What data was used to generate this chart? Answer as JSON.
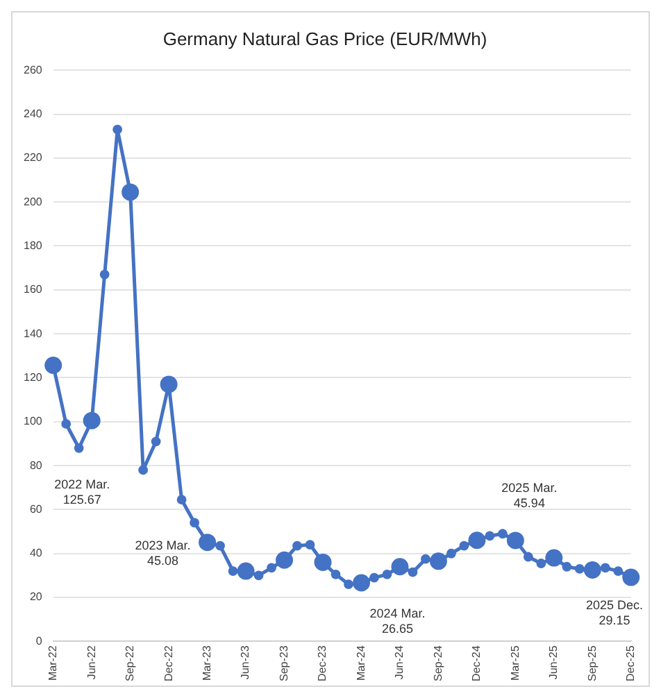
{
  "chart_data": {
    "type": "line",
    "title": "Germany Natural Gas Price (EUR/MWh)",
    "categories": [
      "Mar-22",
      null,
      null,
      "Jun-22",
      null,
      null,
      "Sep-22",
      null,
      null,
      "Dec-22",
      null,
      null,
      "Mar-23",
      null,
      null,
      "Jun-23",
      null,
      null,
      "Sep-23",
      null,
      null,
      "Dec-23",
      null,
      null,
      "Mar-24",
      null,
      null,
      "Jun-24",
      null,
      null,
      "Sep-24",
      null,
      null,
      "Dec-24",
      null,
      null,
      "Mar-25",
      null,
      null,
      "Jun-25",
      null,
      null,
      "Sep-25",
      null,
      null,
      "Dec-25"
    ],
    "series": [
      {
        "color": "#4472c4",
        "values": [
          125.67,
          99,
          88,
          100.5,
          167,
          233,
          204.5,
          78,
          91,
          117,
          64.5,
          54,
          45.08,
          43.5,
          32,
          32,
          30,
          33.5,
          37,
          43.5,
          44,
          36,
          30.5,
          26,
          26.65,
          29,
          30.5,
          34,
          31.5,
          37.5,
          36.5,
          40,
          43.5,
          46,
          48,
          49,
          45.94,
          38.5,
          35.5,
          38,
          34,
          33,
          32.5,
          33.5,
          32,
          29.15
        ]
      }
    ],
    "ylim": [
      0,
      260
    ],
    "yticks": [
      0,
      20,
      40,
      60,
      80,
      100,
      120,
      140,
      160,
      180,
      200,
      220,
      240,
      260
    ],
    "grid": "y",
    "marker": "circle",
    "line_style": "solid",
    "legend": false,
    "annotations": [
      "2022 Mar.\n125.67",
      {
        "text": "2023 Mar.\n45.08",
        "x": "Mar-23",
        "y": 45.08
      },
      {
        "text": "2024 Mar.\n26.65",
        "x": "Mar-24",
        "y": 26.65
      },
      {
        "text": "2025 Mar.\n45.94",
        "x": "Mar-25",
        "y": 45.94
      },
      {
        "text": "2025 Dec.\n29.15",
        "x": "Dec-25",
        "y": 29.15
      }
    ]
  }
}
